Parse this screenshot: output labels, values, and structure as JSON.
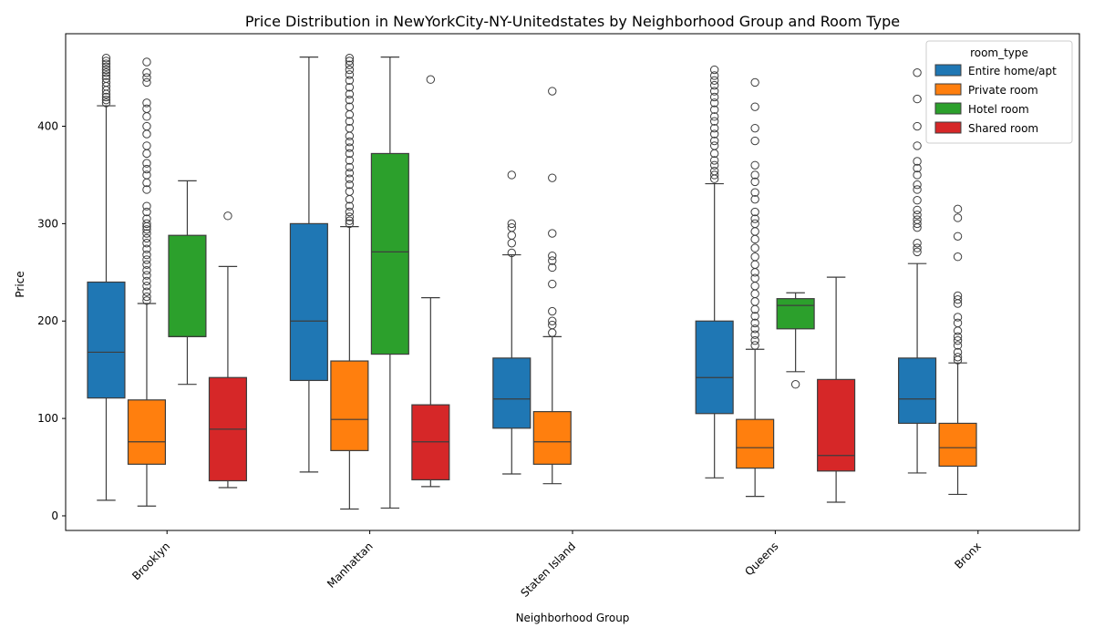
{
  "chart_data": {
    "type": "boxplot",
    "title": "Price Distribution in NewYorkCity-NY-Unitedstates by Neighborhood Group and Room Type",
    "xlabel": "Neighborhood Group",
    "ylabel": "Price",
    "ylim": [
      -15,
      495
    ],
    "yticks": [
      0,
      100,
      200,
      300,
      400
    ],
    "categories": [
      "Brooklyn",
      "Manhattan",
      "Staten Island",
      "Queens",
      "Bronx"
    ],
    "legend": {
      "title": "room_type",
      "placement": "top-right"
    },
    "series": [
      {
        "name": "Entire home/apt",
        "color": "#1f77b4",
        "boxes": [
          {
            "category": "Brooklyn",
            "whisker_low": 16,
            "q1": 121,
            "median": 168,
            "q3": 240,
            "whisker_high": 421,
            "outliers": [
              424,
              427,
              430,
              433,
              437,
              441,
              445,
              449,
              452,
              455,
              458,
              461,
              464,
              467,
              470
            ]
          },
          {
            "category": "Manhattan",
            "whisker_low": 45,
            "q1": 139,
            "median": 200,
            "q3": 300,
            "whisker_high": 471,
            "outliers": []
          },
          {
            "category": "Staten Island",
            "whisker_low": 43,
            "q1": 90,
            "median": 120,
            "q3": 162,
            "whisker_high": 268,
            "outliers": [
              270,
              280,
              288,
              296,
              300,
              350
            ]
          },
          {
            "category": "Queens",
            "whisker_low": 39,
            "q1": 105,
            "median": 142,
            "q3": 200,
            "whisker_high": 341,
            "outliers": [
              346,
              350,
              354,
              360,
              365,
              372,
              380,
              385,
              392,
              398,
              405,
              410,
              417,
              424,
              430,
              436,
              442,
              447,
              452,
              458
            ]
          },
          {
            "category": "Bronx",
            "whisker_low": 44,
            "q1": 95,
            "median": 120,
            "q3": 162,
            "whisker_high": 259,
            "outliers": [
              271,
              275,
              280,
              296,
              300,
              304,
              309,
              314,
              324,
              335,
              340,
              350,
              357,
              364,
              380,
              400,
              428,
              455
            ]
          }
        ]
      },
      {
        "name": "Private room",
        "color": "#ff7f0e",
        "boxes": [
          {
            "category": "Brooklyn",
            "whisker_low": 10,
            "q1": 53,
            "median": 76,
            "q3": 119,
            "whisker_high": 218,
            "outliers": [
              221,
              225,
              230,
              236,
              241,
              247,
              252,
              258,
              263,
              268,
              274,
              280,
              285,
              290,
              294,
              297,
              300,
              305,
              312,
              318,
              335,
              342,
              350,
              356,
              362,
              372,
              380,
              392,
              400,
              410,
              418,
              424,
              445,
              450,
              455,
              466
            ]
          },
          {
            "category": "Manhattan",
            "whisker_low": 7,
            "q1": 67,
            "median": 99,
            "q3": 159,
            "whisker_high": 297,
            "outliers": [
              300,
              303,
              307,
              312,
              318,
              325,
              333,
              340,
              346,
              352,
              358,
              365,
              372,
              378,
              384,
              390,
              398,
              405,
              412,
              420,
              427,
              433,
              440,
              447,
              453,
              458,
              463,
              467,
              470
            ]
          },
          {
            "category": "Staten Island",
            "whisker_low": 33,
            "q1": 53,
            "median": 76,
            "q3": 107,
            "whisker_high": 184,
            "outliers": [
              188,
              196,
              200,
              210,
              238,
              255,
              262,
              267,
              290,
              347,
              436
            ]
          },
          {
            "category": "Queens",
            "whisker_low": 20,
            "q1": 49,
            "median": 70,
            "q3": 99,
            "whisker_high": 171,
            "outliers": [
              175,
              180,
              186,
              192,
              198,
              205,
              212,
              220,
              228,
              236,
              244,
              250,
              258,
              266,
              275,
              284,
              292,
              300,
              305,
              312,
              325,
              332,
              343,
              350,
              360,
              385,
              398,
              420,
              445
            ]
          },
          {
            "category": "Bronx",
            "whisker_low": 22,
            "q1": 51,
            "median": 70,
            "q3": 95,
            "whisker_high": 157,
            "outliers": [
              160,
              163,
              168,
              175,
              180,
              184,
              190,
              198,
              204,
              218,
              222,
              226,
              266,
              287,
              306,
              315
            ]
          }
        ]
      },
      {
        "name": "Hotel room",
        "color": "#2ca02c",
        "boxes": [
          {
            "category": "Brooklyn",
            "whisker_low": 135,
            "q1": 184,
            "median": 184,
            "q3": 288,
            "whisker_high": 344,
            "outliers": []
          },
          {
            "category": "Manhattan",
            "whisker_low": 8,
            "q1": 166,
            "median": 271,
            "q3": 372,
            "whisker_high": 471,
            "outliers": []
          },
          {
            "category": "Queens",
            "whisker_low": 148,
            "q1": 192,
            "median": 216,
            "q3": 223,
            "whisker_high": 229,
            "outliers": [
              135
            ]
          }
        ]
      },
      {
        "name": "Shared room",
        "color": "#d62728",
        "boxes": [
          {
            "category": "Brooklyn",
            "whisker_low": 29,
            "q1": 36,
            "median": 89,
            "q3": 142,
            "whisker_high": 256,
            "outliers": [
              308
            ]
          },
          {
            "category": "Manhattan",
            "whisker_low": 30,
            "q1": 37,
            "median": 76,
            "q3": 114,
            "whisker_high": 224,
            "outliers": [
              448
            ]
          },
          {
            "category": "Queens",
            "whisker_low": 14,
            "q1": 46,
            "median": 62,
            "q3": 140,
            "whisker_high": 245,
            "outliers": []
          }
        ]
      }
    ]
  }
}
